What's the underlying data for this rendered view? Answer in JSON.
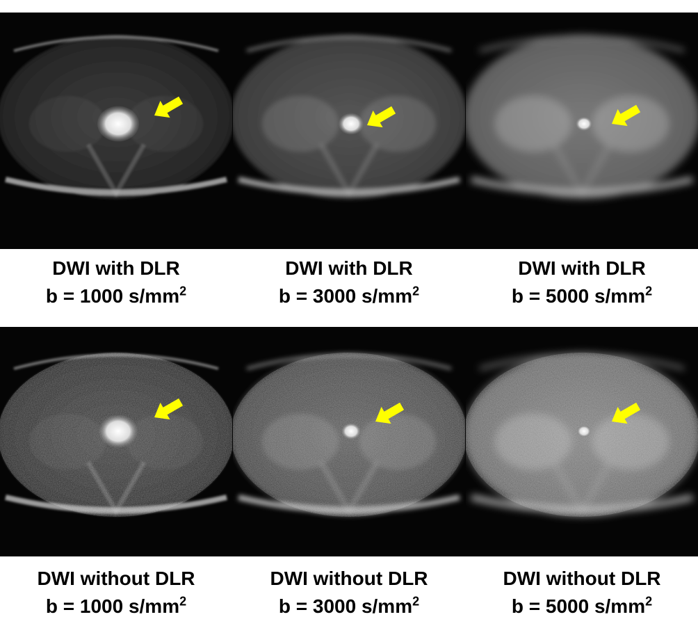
{
  "rows": [
    {
      "panels": [
        {
          "title": "DWI with DLR",
          "b_prefix": "b = 1000 s/mm",
          "b_exp": "2",
          "intensity": 0.55,
          "noise": 0.0
        },
        {
          "title": "DWI with DLR",
          "b_prefix": "b = 3000 s/mm",
          "b_exp": "2",
          "intensity": 0.7,
          "noise": 0.0
        },
        {
          "title": "DWI with DLR",
          "b_prefix": "b = 5000 s/mm",
          "b_exp": "2",
          "intensity": 0.85,
          "noise": 0.0
        }
      ]
    },
    {
      "panels": [
        {
          "title": "DWI without DLR",
          "b_prefix": "b = 1000 s/mm",
          "b_exp": "2",
          "intensity": 0.6,
          "noise": 1.0
        },
        {
          "title": "DWI without DLR",
          "b_prefix": "b = 3000 s/mm",
          "b_exp": "2",
          "intensity": 0.75,
          "noise": 1.0
        },
        {
          "title": "DWI without DLR",
          "b_prefix": "b = 5000 s/mm",
          "b_exp": "2",
          "intensity": 0.9,
          "noise": 1.0
        }
      ]
    }
  ],
  "arrow_color": "#ffff00",
  "lesion_marker": "yellow-arrow-icon"
}
